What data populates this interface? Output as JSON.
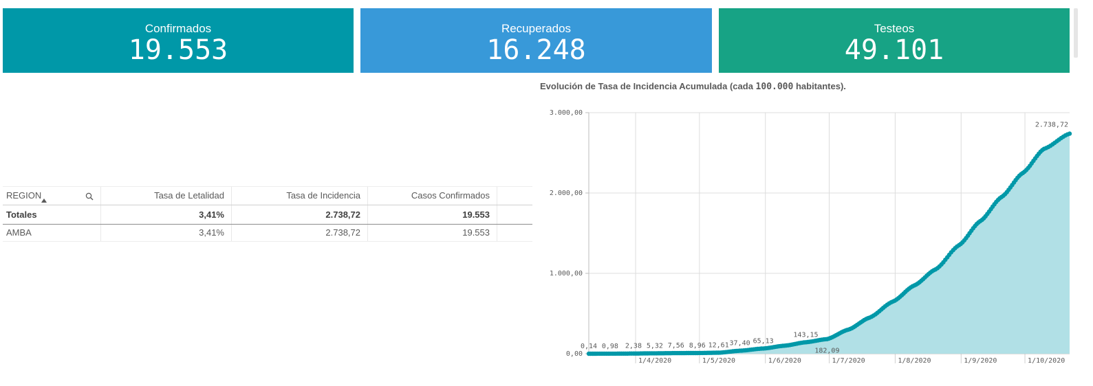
{
  "kpis": [
    {
      "label": "Confirmados",
      "value": "19.553",
      "color": "#0098a8"
    },
    {
      "label": "Recuperados",
      "value": "16.248",
      "color": "#3899d9"
    },
    {
      "label": "Testeos",
      "value": "49.101",
      "color": "#17a385"
    }
  ],
  "table": {
    "headers": [
      "REGION",
      "Tasa de Letalidad",
      "Tasa de Incidencia",
      "Casos Confirmados"
    ],
    "totals": [
      "Totales",
      "3,41%",
      "2.738,72",
      "19.553"
    ],
    "rows": [
      [
        "AMBA",
        "3,41%",
        "2.738,72",
        "19.553"
      ]
    ]
  },
  "chart_title": {
    "prefix": "Evolución de Tasa de Incidencia Acumulada (cada ",
    "number": "100.000",
    "suffix": " habitantes)."
  },
  "chart_data": {
    "type": "area",
    "title": "Evolución de Tasa de Incidencia Acumulada (cada 100.000 habitantes).",
    "xlabel": "",
    "ylabel": "",
    "ylim": [
      0,
      3000
    ],
    "y_ticks": [
      0,
      1000,
      2000,
      3000
    ],
    "y_tick_labels": [
      "0,00",
      "1.000,00",
      "2.000,00",
      "3.000,00"
    ],
    "x_tick_dates": [
      "2020-04-01",
      "2020-05-01",
      "2020-06-01",
      "2020-07-01",
      "2020-08-01",
      "2020-09-01",
      "2020-10-01"
    ],
    "x_tick_labels": [
      "1/4/2020",
      "1/5/2020",
      "1/6/2020",
      "1/7/2020",
      "1/8/2020",
      "1/9/2020",
      "1/10/2020"
    ],
    "x_start": "2020-03-10",
    "x_end": "2020-10-22",
    "grid": true,
    "color": "#0098a8",
    "fill_color": "#b1e0e6",
    "series": [
      {
        "x": [
          "2020-03-10",
          "2020-03-20",
          "2020-03-31",
          "2020-04-10",
          "2020-04-20",
          "2020-04-30",
          "2020-05-10",
          "2020-05-20",
          "2020-05-31",
          "2020-06-10",
          "2020-06-20",
          "2020-06-30",
          "2020-07-10",
          "2020-07-20",
          "2020-07-31",
          "2020-08-10",
          "2020-08-20",
          "2020-08-31",
          "2020-09-10",
          "2020-09-20",
          "2020-09-30",
          "2020-10-10",
          "2020-10-22"
        ],
        "y": [
          0.14,
          0.98,
          2.38,
          5.32,
          7.56,
          8.96,
          12.61,
          37.4,
          65.13,
          100,
          143.15,
          182.09,
          300,
          450,
          650,
          850,
          1050,
          1350,
          1650,
          1950,
          2250,
          2550,
          2738.72
        ]
      }
    ],
    "data_labels": [
      {
        "x": "2020-03-10",
        "y": 0.14,
        "label": "0,14"
      },
      {
        "x": "2020-03-20",
        "y": 0.98,
        "label": "0,98"
      },
      {
        "x": "2020-03-31",
        "y": 2.38,
        "label": "2,38"
      },
      {
        "x": "2020-04-10",
        "y": 5.32,
        "label": "5,32"
      },
      {
        "x": "2020-04-20",
        "y": 7.56,
        "label": "7,56"
      },
      {
        "x": "2020-04-30",
        "y": 8.96,
        "label": "8,96"
      },
      {
        "x": "2020-05-10",
        "y": 12.61,
        "label": "12,61"
      },
      {
        "x": "2020-05-20",
        "y": 37.4,
        "label": "37,40"
      },
      {
        "x": "2020-05-31",
        "y": 65.13,
        "label": "65,13"
      },
      {
        "x": "2020-06-20",
        "y": 143.15,
        "label": "143,15"
      },
      {
        "x": "2020-06-30",
        "y": 182.09,
        "label": "182,09"
      },
      {
        "x": "2020-10-22",
        "y": 2738.72,
        "label": "2.738,72"
      }
    ]
  }
}
